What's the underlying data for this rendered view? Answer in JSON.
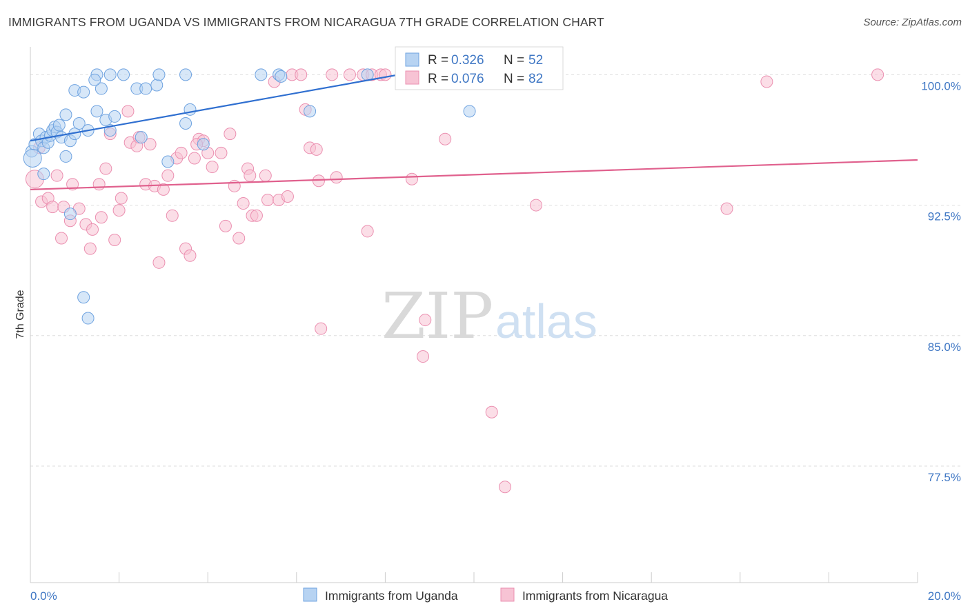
{
  "title": "IMMIGRANTS FROM UGANDA VS IMMIGRANTS FROM NICARAGUA 7TH GRADE CORRELATION CHART",
  "source": "Source: ZipAtlas.com",
  "watermark": {
    "zip": "ZIP",
    "atlas": "atlas"
  },
  "colors": {
    "uganda_fill": "#b7d3f2",
    "uganda_stroke": "#6fa3e0",
    "uganda_line": "#2f6fd0",
    "nicaragua_fill": "#f7c3d4",
    "nicaragua_stroke": "#eb8fb0",
    "nicaragua_line": "#e0608d",
    "tick_label": "#3f77c4",
    "grid": "#dddddd"
  },
  "legend_top": {
    "rows": [
      {
        "r_label": "R = ",
        "r_value": "0.326",
        "n_label": "N = ",
        "n_value": "52"
      },
      {
        "r_label": "R = ",
        "r_value": "0.076",
        "n_label": "N = ",
        "n_value": "82"
      }
    ]
  },
  "legend_bottom": [
    "Immigrants from Uganda",
    "Immigrants from Nicaragua"
  ],
  "chart_data": {
    "type": "scatter",
    "title": "IMMIGRANTS FROM UGANDA VS IMMIGRANTS FROM NICARAGUA 7TH GRADE CORRELATION CHART",
    "xlabel": "",
    "ylabel": "7th Grade",
    "xlim": [
      0,
      20
    ],
    "ylim": [
      70.8,
      101.6
    ],
    "x_tick_labels": [
      "0.0%",
      "20.0%"
    ],
    "y_ticks": [
      100.0,
      92.5,
      85.0,
      77.5
    ],
    "y_tick_labels": [
      "100.0%",
      "92.5%",
      "85.0%",
      "77.5%"
    ],
    "grid": true,
    "legend_placement": "top-center and bottom",
    "series": [
      {
        "name": "Immigrants from Uganda",
        "R": 0.326,
        "N": 52,
        "trend": {
          "x0": 0.0,
          "y0": 96.2,
          "x1": 8.3,
          "y1": 100.0
        },
        "points": [
          [
            0.03,
            95.6
          ],
          [
            0.1,
            96.0
          ],
          [
            0.2,
            96.6
          ],
          [
            0.25,
            96.2
          ],
          [
            0.3,
            95.8
          ],
          [
            0.35,
            96.4
          ],
          [
            0.4,
            96.1
          ],
          [
            0.45,
            96.5
          ],
          [
            0.5,
            96.8
          ],
          [
            0.55,
            97.0
          ],
          [
            0.6,
            96.7
          ],
          [
            0.65,
            97.1
          ],
          [
            0.7,
            96.4
          ],
          [
            0.8,
            97.7
          ],
          [
            0.9,
            96.2
          ],
          [
            1.0,
            96.6
          ],
          [
            1.1,
            97.2
          ],
          [
            1.3,
            96.8
          ],
          [
            1.5,
            97.9
          ],
          [
            1.7,
            97.4
          ],
          [
            1.8,
            96.8
          ],
          [
            1.9,
            97.6
          ],
          [
            0.3,
            94.3
          ],
          [
            0.8,
            95.3
          ],
          [
            0.9,
            92.0
          ],
          [
            1.2,
            87.2
          ],
          [
            1.3,
            86.0
          ],
          [
            1.0,
            99.1
          ],
          [
            1.2,
            99.0
          ],
          [
            1.6,
            99.2
          ],
          [
            1.5,
            100.0
          ],
          [
            1.8,
            100.0
          ],
          [
            1.45,
            99.7
          ],
          [
            2.1,
            100.0
          ],
          [
            2.4,
            99.2
          ],
          [
            2.6,
            99.2
          ],
          [
            2.85,
            99.4
          ],
          [
            2.9,
            100.0
          ],
          [
            3.5,
            100.0
          ],
          [
            3.6,
            98.0
          ],
          [
            3.5,
            97.2
          ],
          [
            3.9,
            96.0
          ],
          [
            3.1,
            95.0
          ],
          [
            2.5,
            96.4
          ],
          [
            5.2,
            100.0
          ],
          [
            5.6,
            100.0
          ],
          [
            5.65,
            99.9
          ],
          [
            6.3,
            97.9
          ],
          [
            8.4,
            100.0
          ],
          [
            9.9,
            97.9
          ],
          [
            7.6,
            100.0
          ],
          [
            0.05,
            95.2
          ]
        ]
      },
      {
        "name": "Immigrants from Nicaragua",
        "R": 0.076,
        "N": 82,
        "trend": {
          "x0": 0.0,
          "y0": 93.4,
          "x1": 20.0,
          "y1": 95.1
        },
        "points": [
          [
            0.1,
            94.0
          ],
          [
            0.2,
            95.8
          ],
          [
            0.25,
            92.7
          ],
          [
            0.4,
            92.9
          ],
          [
            0.5,
            92.4
          ],
          [
            0.6,
            94.2
          ],
          [
            0.7,
            90.6
          ],
          [
            0.75,
            92.4
          ],
          [
            0.9,
            91.6
          ],
          [
            0.95,
            93.7
          ],
          [
            1.1,
            92.3
          ],
          [
            1.25,
            91.4
          ],
          [
            1.35,
            90.0
          ],
          [
            1.4,
            91.1
          ],
          [
            1.55,
            93.7
          ],
          [
            1.6,
            91.8
          ],
          [
            1.7,
            94.6
          ],
          [
            1.8,
            96.6
          ],
          [
            1.9,
            90.5
          ],
          [
            2.0,
            92.2
          ],
          [
            2.05,
            92.9
          ],
          [
            2.2,
            97.9
          ],
          [
            2.25,
            96.1
          ],
          [
            2.4,
            95.9
          ],
          [
            2.45,
            96.4
          ],
          [
            2.6,
            93.7
          ],
          [
            2.7,
            96.0
          ],
          [
            2.8,
            93.6
          ],
          [
            2.9,
            89.2
          ],
          [
            3.0,
            93.4
          ],
          [
            3.1,
            94.2
          ],
          [
            3.2,
            91.9
          ],
          [
            3.3,
            95.2
          ],
          [
            3.4,
            95.5
          ],
          [
            3.5,
            90.0
          ],
          [
            3.6,
            89.6
          ],
          [
            3.7,
            95.2
          ],
          [
            3.8,
            96.3
          ],
          [
            3.9,
            96.2
          ],
          [
            4.0,
            95.5
          ],
          [
            4.1,
            94.7
          ],
          [
            4.3,
            95.5
          ],
          [
            4.4,
            91.3
          ],
          [
            4.5,
            96.6
          ],
          [
            4.6,
            93.6
          ],
          [
            4.7,
            90.6
          ],
          [
            4.8,
            92.6
          ],
          [
            4.9,
            94.6
          ],
          [
            5.0,
            91.9
          ],
          [
            5.1,
            91.9
          ],
          [
            5.3,
            94.2
          ],
          [
            5.35,
            92.8
          ],
          [
            5.5,
            99.6
          ],
          [
            5.6,
            92.8
          ],
          [
            5.8,
            93.0
          ],
          [
            5.9,
            100.0
          ],
          [
            6.1,
            100.0
          ],
          [
            6.2,
            98.0
          ],
          [
            6.3,
            95.8
          ],
          [
            6.45,
            95.7
          ],
          [
            6.5,
            93.9
          ],
          [
            6.55,
            85.4
          ],
          [
            6.8,
            100.0
          ],
          [
            6.9,
            94.1
          ],
          [
            7.2,
            100.0
          ],
          [
            7.5,
            100.0
          ],
          [
            7.6,
            91.0
          ],
          [
            7.7,
            100.0
          ],
          [
            7.9,
            100.0
          ],
          [
            8.0,
            100.0
          ],
          [
            8.6,
            94.0
          ],
          [
            8.85,
            83.8
          ],
          [
            8.9,
            85.9
          ],
          [
            9.35,
            96.3
          ],
          [
            10.4,
            80.6
          ],
          [
            10.7,
            76.3
          ],
          [
            11.4,
            92.5
          ],
          [
            15.7,
            92.3
          ],
          [
            16.6,
            99.6
          ],
          [
            19.1,
            100.0
          ],
          [
            3.75,
            96.0
          ],
          [
            4.95,
            94.2
          ]
        ]
      }
    ]
  }
}
